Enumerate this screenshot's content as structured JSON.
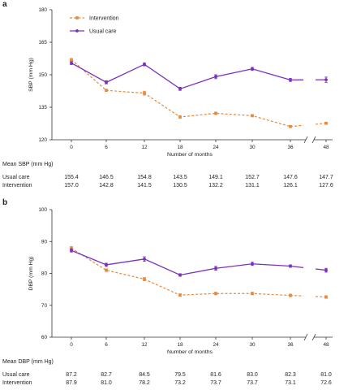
{
  "chart_data": [
    {
      "panel": "a",
      "type": "line",
      "ylabel": "SBP (mm Hg)",
      "xlabel": "Number of months",
      "x": [
        0,
        6,
        12,
        18,
        24,
        30,
        36,
        48
      ],
      "x_tick_labels": [
        "0",
        "6",
        "12",
        "18",
        "24",
        "30",
        "36",
        "48"
      ],
      "ylim": [
        120,
        180
      ],
      "yticks": [
        120,
        135,
        150,
        165,
        180
      ],
      "axis_break": "between 36 and 48 months",
      "grid": false,
      "legend_position": "top-left",
      "series": [
        {
          "name": "Intervention",
          "color": "#E8883A",
          "line_style": "dashed",
          "marker": "square",
          "values": [
            157.0,
            142.8,
            141.5,
            130.5,
            132.2,
            131.1,
            126.1,
            127.6
          ],
          "error": [
            0.5,
            0.5,
            0.9,
            0.5,
            0.5,
            0.5,
            0.5,
            0.5
          ]
        },
        {
          "name": "Usual care",
          "color": "#7B2FBE",
          "line_style": "solid",
          "marker": "circle",
          "values": [
            155.4,
            146.5,
            154.8,
            143.5,
            149.1,
            152.7,
            147.6,
            147.7
          ],
          "error": [
            0.7,
            0.7,
            0.7,
            0.7,
            0.9,
            0.7,
            0.7,
            1.2
          ]
        }
      ],
      "table": {
        "title": "Mean SBP (mm Hg)",
        "rows": [
          {
            "label": "Usual care",
            "values": [
              "155.4",
              "146.5",
              "154.8",
              "143.5",
              "149.1",
              "152.7",
              "147.6",
              "147.7"
            ]
          },
          {
            "label": "Intervention",
            "values": [
              "157.0",
              "142.8",
              "141.5",
              "130.5",
              "132.2",
              "131.1",
              "126.1",
              "127.6"
            ]
          }
        ]
      }
    },
    {
      "panel": "b",
      "type": "line",
      "ylabel": "DBP (mm Hg)",
      "xlabel": "Number of months",
      "x": [
        0,
        6,
        12,
        18,
        24,
        30,
        36,
        48
      ],
      "x_tick_labels": [
        "0",
        "6",
        "12",
        "18",
        "24",
        "30",
        "36",
        "48"
      ],
      "ylim": [
        60,
        100
      ],
      "yticks": [
        60,
        70,
        80,
        90,
        100
      ],
      "axis_break": "between 36 and 48 months",
      "grid": false,
      "series": [
        {
          "name": "Intervention",
          "color": "#E8883A",
          "line_style": "dashed",
          "marker": "square",
          "values": [
            87.9,
            81.0,
            78.2,
            73.2,
            73.7,
            73.7,
            73.1,
            72.6
          ],
          "error": [
            0.5,
            0.4,
            0.5,
            0.4,
            0.4,
            0.4,
            0.4,
            0.4
          ]
        },
        {
          "name": "Usual care",
          "color": "#7B2FBE",
          "line_style": "solid",
          "marker": "circle",
          "values": [
            87.2,
            82.7,
            84.5,
            79.5,
            81.6,
            83.0,
            82.3,
            81.0
          ],
          "error": [
            0.5,
            0.5,
            0.7,
            0.4,
            0.6,
            0.5,
            0.4,
            0.6
          ]
        }
      ],
      "table": {
        "title": "Mean DBP (mm Hg)",
        "rows": [
          {
            "label": "Usual care",
            "values": [
              "87.2",
              "82.7",
              "84.5",
              "79.5",
              "81.6",
              "83.0",
              "82.3",
              "81.0"
            ]
          },
          {
            "label": "Intervention",
            "values": [
              "87.9",
              "81.0",
              "78.2",
              "73.2",
              "73.7",
              "73.7",
              "73.1",
              "72.6"
            ]
          }
        ]
      }
    }
  ]
}
